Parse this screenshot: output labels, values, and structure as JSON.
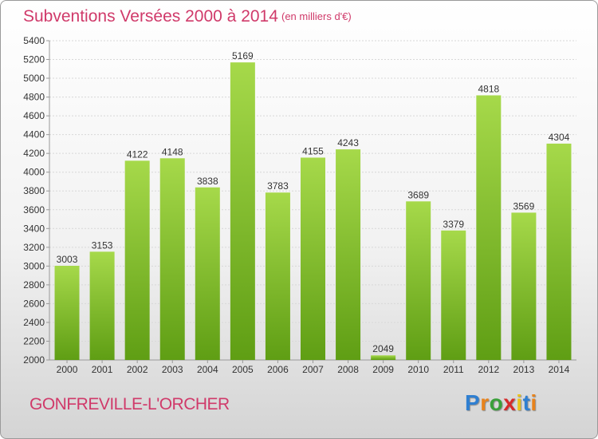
{
  "chart_data": {
    "type": "bar",
    "title": "Subventions Versées 2000 à 2014",
    "unit_note": "(en milliers d'€)",
    "categories": [
      "2000",
      "2001",
      "2002",
      "2003",
      "2004",
      "2005",
      "2006",
      "2007",
      "2008",
      "2009",
      "2010",
      "2011",
      "2012",
      "2013",
      "2014"
    ],
    "values": [
      3003,
      3153,
      4122,
      4148,
      3838,
      5169,
      3783,
      4155,
      4243,
      2049,
      3689,
      3379,
      4818,
      3569,
      4304
    ],
    "ylim": [
      2000,
      5400
    ],
    "yticks": [
      2000,
      2200,
      2400,
      2600,
      2800,
      3000,
      3200,
      3400,
      3600,
      3800,
      4000,
      4200,
      4400,
      4600,
      4800,
      5000,
      5200,
      5400
    ],
    "grid": true,
    "xlabel": "",
    "ylabel": ""
  },
  "footer": {
    "city": "GONFREVILLE-L'ORCHER",
    "brand_letters": [
      "P",
      "r",
      "o",
      "x",
      "i",
      "t",
      "i"
    ]
  },
  "colors": {
    "bar_top": "#a6d94a",
    "bar_bottom": "#5f9e14",
    "title": "#d03a6a",
    "brand": [
      "#2f7fd1",
      "#e8831c",
      "#3aa03a",
      "#d62a2a",
      "#e8c21c",
      "#2f7fd1",
      "#e8831c"
    ]
  }
}
